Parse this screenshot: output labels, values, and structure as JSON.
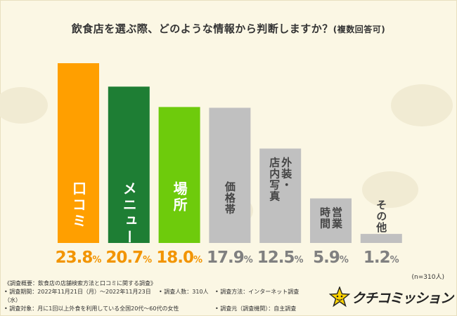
{
  "title": "飲食店を選ぶ際、どのような情報から判断しますか？",
  "title_suffix": "(複数回答可)",
  "sample_note": "(n=310人)",
  "colors": {
    "background": "#fbf7e4",
    "orange": "#ff9f00",
    "green_dark": "#1e7e34",
    "green_light": "#6ecb0c",
    "gray": "#c0c0c0",
    "pct_orange": "#f29400",
    "pct_gray": "#808080"
  },
  "chart_data": {
    "type": "bar",
    "title": "飲食店を選ぶ際、どのような情報から判断しますか？(複数回答可)",
    "unit": "%",
    "ylim": [
      0,
      25
    ],
    "categories": [
      "口コミ",
      "メニュー",
      "場所",
      "価格帯",
      "外装・店内写真",
      "営業時間",
      "その他"
    ],
    "values": [
      23.8,
      20.7,
      18.0,
      17.9,
      12.5,
      5.9,
      1.2
    ],
    "value_labels": [
      {
        "num": "23.8",
        "pct": "%"
      },
      {
        "num": "20.7",
        "pct": "%"
      },
      {
        "num": "18.0",
        "pct": "%"
      },
      {
        "num": "17.9",
        "pct": "%"
      },
      {
        "num": "12.5",
        "pct": "%"
      },
      {
        "num": "5.9",
        "pct": "%"
      },
      {
        "num": "1.2",
        "pct": "%"
      }
    ],
    "label_columns": [
      [
        "口コミ"
      ],
      [
        "メニュー"
      ],
      [
        "場所"
      ],
      [
        "価格帯"
      ],
      [
        "外装・",
        "店内写真"
      ],
      [
        "営業",
        "時間"
      ],
      [
        "その他"
      ]
    ],
    "bar_colors": [
      "#ff9f00",
      "#1e7e34",
      "#6ecb0c",
      "#c0c0c0",
      "#c0c0c0",
      "#c0c0c0",
      "#c0c0c0"
    ],
    "label_colors": [
      "#ffffff",
      "#ffffff",
      "#ffffff",
      "#444444",
      "#444444",
      "#444444",
      "#444444"
    ],
    "pct_colors": [
      "#f29400",
      "#f29400",
      "#f29400",
      "#808080",
      "#808080",
      "#808080",
      "#808080"
    ]
  },
  "footer": {
    "heading": "《調査概要：飲食店の店舗検索方法と口コミに関する調査》",
    "period": "• 調査期間：2022年11月21日（月）～2022年11月23日（水）",
    "count": "• 調査人数：310人",
    "method": "• 調査方法：インターネット調査",
    "target": "• 調査対象：月に1回以上外食を利用している全国20代～60代の女性",
    "source": "• 調査元（調査機関）：自主調査"
  },
  "brand": {
    "name": "クチコミッション"
  }
}
